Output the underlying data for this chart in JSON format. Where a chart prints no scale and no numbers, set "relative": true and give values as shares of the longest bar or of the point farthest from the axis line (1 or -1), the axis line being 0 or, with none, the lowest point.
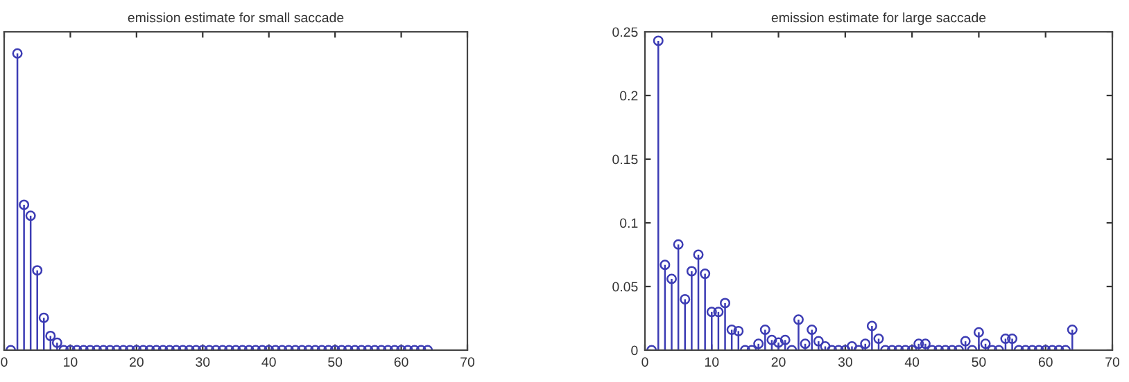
{
  "chart_data": [
    {
      "type": "lollipop",
      "title": "emission estimate for small saccade",
      "relative": true,
      "tick_labels": "x",
      "marker": "circle",
      "x": [
        1,
        2,
        3,
        4,
        5,
        6,
        7,
        8,
        9,
        10,
        11,
        12,
        13,
        14,
        15,
        16,
        17,
        18,
        19,
        20,
        21,
        22,
        23,
        24,
        25,
        26,
        27,
        28,
        29,
        30,
        31,
        32,
        33,
        34,
        35,
        36,
        37,
        38,
        39,
        40,
        41,
        42,
        43,
        44,
        45,
        46,
        47,
        48,
        49,
        50,
        51,
        52,
        53,
        54,
        55,
        56,
        57,
        58,
        59,
        60,
        61,
        62,
        63,
        64
      ],
      "series": [
        {
          "color": "#3c3cb4",
          "values": [
            0,
            1,
            0.49,
            0.453,
            0.269,
            0.109,
            0.048,
            0.025,
            0,
            0,
            0,
            0,
            0,
            0,
            0,
            0,
            0,
            0,
            0,
            0,
            0,
            0,
            0,
            0,
            0,
            0,
            0,
            0,
            0,
            0,
            0,
            0,
            0,
            0,
            0,
            0,
            0,
            0,
            0,
            0,
            0,
            0,
            0,
            0,
            0,
            0,
            0,
            0,
            0,
            0,
            0,
            0,
            0,
            0,
            0,
            0,
            0,
            0,
            0,
            0,
            0,
            0,
            0,
            0
          ]
        }
      ],
      "xlim": [
        0,
        70
      ],
      "xticks": [
        0,
        10,
        20,
        30,
        40,
        50,
        60,
        70
      ]
    },
    {
      "type": "lollipop",
      "title": "emission estimate for large saccade",
      "marker": "circle",
      "x": [
        1,
        2,
        3,
        4,
        5,
        6,
        7,
        8,
        9,
        10,
        11,
        12,
        13,
        14,
        15,
        16,
        17,
        18,
        19,
        20,
        21,
        22,
        23,
        24,
        25,
        26,
        27,
        28,
        29,
        30,
        31,
        32,
        33,
        34,
        35,
        36,
        37,
        38,
        39,
        40,
        41,
        42,
        43,
        44,
        45,
        46,
        47,
        48,
        49,
        50,
        51,
        52,
        53,
        54,
        55,
        56,
        57,
        58,
        59,
        60,
        61,
        62,
        63,
        64
      ],
      "series": [
        {
          "color": "#3c3cb4",
          "values": [
            0,
            0.243,
            0.067,
            0.056,
            0.083,
            0.04,
            0.062,
            0.075,
            0.06,
            0.03,
            0.03,
            0.037,
            0.016,
            0.015,
            0,
            0,
            0.005,
            0.016,
            0.008,
            0.006,
            0.008,
            0,
            0.024,
            0.005,
            0.016,
            0.007,
            0.003,
            0,
            0,
            0,
            0.003,
            0,
            0.005,
            0.019,
            0.009,
            0,
            0,
            0,
            0,
            0,
            0.005,
            0.005,
            0,
            0,
            0,
            0,
            0,
            0.007,
            0,
            0.014,
            0.005,
            0,
            0,
            0.009,
            0.009,
            0,
            0,
            0,
            0,
            0,
            0,
            0,
            0,
            0.016
          ]
        }
      ],
      "xlim": [
        0,
        70
      ],
      "xticks": [
        0,
        10,
        20,
        30,
        40,
        50,
        60,
        70
      ],
      "ylim": [
        0,
        0.25
      ],
      "yticks": [
        0,
        0.05,
        0.1,
        0.15,
        0.2,
        0.25
      ]
    }
  ]
}
